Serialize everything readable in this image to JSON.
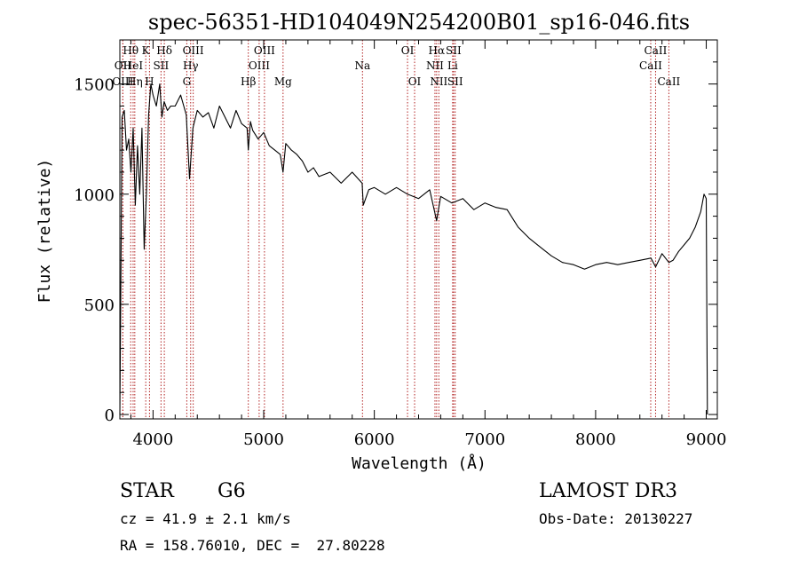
{
  "chart_data": {
    "type": "line",
    "title": "spec-56351-HD104049N254200B01_sp16-046.fits",
    "xlabel": "Wavelength (Å)",
    "ylabel": "Flux (relative)",
    "xlim": [
      3700,
      9100
    ],
    "ylim": [
      -20,
      1700
    ],
    "xticks": [
      4000,
      5000,
      6000,
      7000,
      8000,
      9000
    ],
    "yticks": [
      0,
      500,
      1000,
      1500
    ],
    "grid": false,
    "series": [
      {
        "name": "flux",
        "x": [
          3700,
          3720,
          3740,
          3760,
          3780,
          3800,
          3820,
          3840,
          3860,
          3880,
          3900,
          3920,
          3940,
          3960,
          3980,
          4000,
          4030,
          4060,
          4080,
          4100,
          4130,
          4160,
          4200,
          4250,
          4300,
          4330,
          4360,
          4400,
          4450,
          4500,
          4550,
          4600,
          4650,
          4700,
          4750,
          4800,
          4850,
          4861,
          4880,
          4900,
          4950,
          5000,
          5050,
          5100,
          5150,
          5175,
          5200,
          5250,
          5300,
          5350,
          5400,
          5450,
          5500,
          5600,
          5700,
          5800,
          5890,
          5900,
          5950,
          6000,
          6100,
          6200,
          6300,
          6400,
          6500,
          6563,
          6600,
          6700,
          6800,
          6900,
          7000,
          7100,
          7200,
          7300,
          7400,
          7500,
          7600,
          7700,
          7800,
          7900,
          8000,
          8100,
          8200,
          8300,
          8400,
          8500,
          8542,
          8600,
          8662,
          8700,
          8750,
          8800,
          8850,
          8900,
          8950,
          8980,
          9000,
          9010
        ],
        "y": [
          0,
          1350,
          1380,
          1200,
          1250,
          1100,
          1300,
          950,
          1220,
          1000,
          1300,
          750,
          1000,
          1360,
          1500,
          1450,
          1400,
          1500,
          1350,
          1420,
          1380,
          1400,
          1400,
          1450,
          1360,
          1070,
          1300,
          1380,
          1350,
          1370,
          1300,
          1400,
          1350,
          1300,
          1380,
          1320,
          1300,
          1200,
          1330,
          1290,
          1250,
          1280,
          1220,
          1200,
          1180,
          1100,
          1230,
          1200,
          1180,
          1150,
          1100,
          1120,
          1080,
          1100,
          1050,
          1100,
          1050,
          950,
          1020,
          1030,
          1000,
          1030,
          1000,
          980,
          1020,
          880,
          990,
          960,
          980,
          930,
          960,
          940,
          930,
          850,
          800,
          760,
          720,
          690,
          680,
          660,
          680,
          690,
          680,
          690,
          700,
          710,
          670,
          730,
          690,
          700,
          740,
          770,
          800,
          850,
          920,
          1000,
          980,
          0
        ]
      }
    ],
    "lines": [
      {
        "label": "Hθ",
        "wave": 3798,
        "row": 1
      },
      {
        "label": "OII",
        "wave": 3727,
        "row": 2
      },
      {
        "label": "OIII",
        "wave": 3727,
        "row": 3
      },
      {
        "label": "HeI",
        "wave": 3820,
        "row": 2
      },
      {
        "label": "Hη",
        "wave": 3835,
        "row": 3
      },
      {
        "label": "K",
        "wave": 3934,
        "row": 1
      },
      {
        "label": "SII",
        "wave": 4072,
        "row": 2
      },
      {
        "label": "H",
        "wave": 3968,
        "row": 3
      },
      {
        "label": "Hδ",
        "wave": 4102,
        "row": 1
      },
      {
        "label": "OIII",
        "wave": 4363,
        "row": 1
      },
      {
        "label": "Hγ",
        "wave": 4340,
        "row": 2
      },
      {
        "label": "G",
        "wave": 4305,
        "row": 3
      },
      {
        "label": "Hβ",
        "wave": 4861,
        "row": 3
      },
      {
        "label": "OIII",
        "wave": 5007,
        "row": 1
      },
      {
        "label": "OIII",
        "wave": 4959,
        "row": 2
      },
      {
        "label": "Mg",
        "wave": 5175,
        "row": 3
      },
      {
        "label": "Na",
        "wave": 5893,
        "row": 2
      },
      {
        "label": "OI",
        "wave": 6300,
        "row": 1
      },
      {
        "label": "OI",
        "wave": 6364,
        "row": 3
      },
      {
        "label": "Hα",
        "wave": 6563,
        "row": 1
      },
      {
        "label": "NII",
        "wave": 6548,
        "row": 2
      },
      {
        "label": "NII",
        "wave": 6583,
        "row": 3
      },
      {
        "label": "SII",
        "wave": 6716,
        "row": 1
      },
      {
        "label": "Li",
        "wave": 6708,
        "row": 2
      },
      {
        "label": "SII",
        "wave": 6731,
        "row": 3
      },
      {
        "label": "CaII",
        "wave": 8542,
        "row": 1
      },
      {
        "label": "CaII",
        "wave": 8498,
        "row": 2
      },
      {
        "label": "CaII",
        "wave": 8662,
        "row": 3
      }
    ]
  },
  "info": {
    "class": "STAR",
    "subclass": "G6",
    "survey": "LAMOST DR3",
    "cz": "cz = 41.9 ± 2.1 km/s",
    "obs_date": "Obs-Date: 20130227",
    "coords": "RA = 158.76010, DEC =  27.80228"
  },
  "colors": {
    "line_marker": "#b22222",
    "spectrum": "#000000"
  }
}
